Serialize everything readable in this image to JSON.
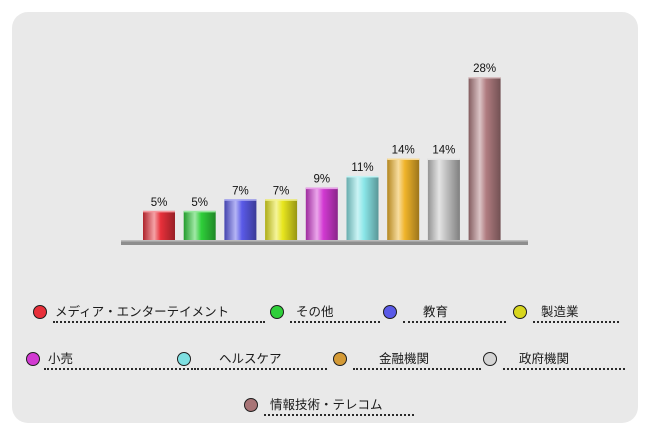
{
  "chart_data": {
    "type": "bar",
    "categories": [
      "メディア・エンターテイメント",
      "その他",
      "教育",
      "製造業",
      "小売",
      "ヘルスケア",
      "金融機関",
      "政府機関",
      "情報技術・テレコム"
    ],
    "values": [
      5,
      5,
      7,
      7,
      9,
      11,
      14,
      14,
      28
    ],
    "value_labels": [
      "5%",
      "5%",
      "7%",
      "7%",
      "9%",
      "11%",
      "14%",
      "14%",
      "28%"
    ],
    "colors": [
      "#e8303a",
      "#2fcf3a",
      "#5a5ae8",
      "#e8e61e",
      "#d23ad2",
      "#8ae6e8",
      "#f0b42a",
      "#c4c4c4",
      "#b07c80"
    ],
    "ylim": [
      0,
      28
    ],
    "grid": false,
    "legend_position": "bottom"
  },
  "legend": {
    "items": [
      {
        "label": "メディア・エンターテイメント",
        "color": "#e8303a"
      },
      {
        "label": "その他",
        "color": "#2fcf3a"
      },
      {
        "label": "教育",
        "color": "#5a5ae8"
      },
      {
        "label": "製造業",
        "color": "#d8d61e"
      },
      {
        "label": "小売",
        "color": "#d23ad2"
      },
      {
        "label": "ヘルスケア",
        "color": "#7ee0e2"
      },
      {
        "label": "金融機関",
        "color": "#d49a36"
      },
      {
        "label": "政府機関",
        "color": "#d4d4d4"
      },
      {
        "label": "情報技術・テレコム",
        "color": "#a87476"
      }
    ]
  }
}
